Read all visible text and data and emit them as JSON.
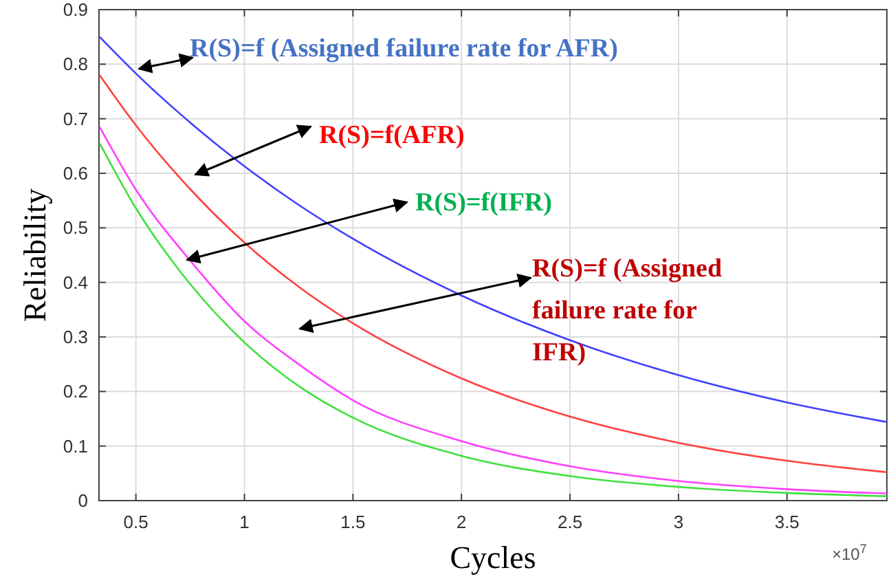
{
  "chart_data": {
    "type": "line",
    "xlabel": "Cycles",
    "ylabel": "Reliability",
    "x": [
      0.333,
      0.5,
      0.75,
      1,
      1.25,
      1.5,
      2,
      2.5,
      3,
      3.5,
      3.96
    ],
    "series": [
      {
        "color": "#4040ff",
        "values": [
          0.85,
          0.783,
          0.693,
          0.613,
          0.542,
          0.48,
          0.376,
          0.294,
          0.23,
          0.18,
          0.144
        ]
      },
      {
        "color": "#ff4040",
        "values": [
          0.78,
          0.688,
          0.571,
          0.473,
          0.392,
          0.325,
          0.224,
          0.154,
          0.106,
          0.073,
          0.052
        ]
      },
      {
        "color": "#ff40ff",
        "values": [
          0.685,
          0.57,
          0.44,
          0.329,
          0.25,
          0.184,
          0.109,
          0.063,
          0.036,
          0.021,
          0.013
        ]
      },
      {
        "color": "#40e040",
        "values": [
          0.655,
          0.536,
          0.397,
          0.29,
          0.21,
          0.152,
          0.082,
          0.045,
          0.025,
          0.014,
          0.008
        ]
      }
    ],
    "xlim": [
      0.33,
      3.96
    ],
    "ylim": [
      0,
      0.9
    ],
    "xticks": [
      0.5,
      1,
      1.5,
      2,
      2.5,
      3,
      3.5
    ],
    "yticks": [
      0,
      0.1,
      0.2,
      0.3,
      0.4,
      0.5,
      0.6,
      0.7,
      0.8,
      0.9
    ],
    "grid": true,
    "annotations": [
      "R(S)=f (Assigned failure rate for AFR)",
      "R(S)=f(AFR)",
      "R(S)=f(IFR)",
      "R(S)=f (Assigned failure rate for IFR)",
      "×10$^{7}$"
    ]
  }
}
